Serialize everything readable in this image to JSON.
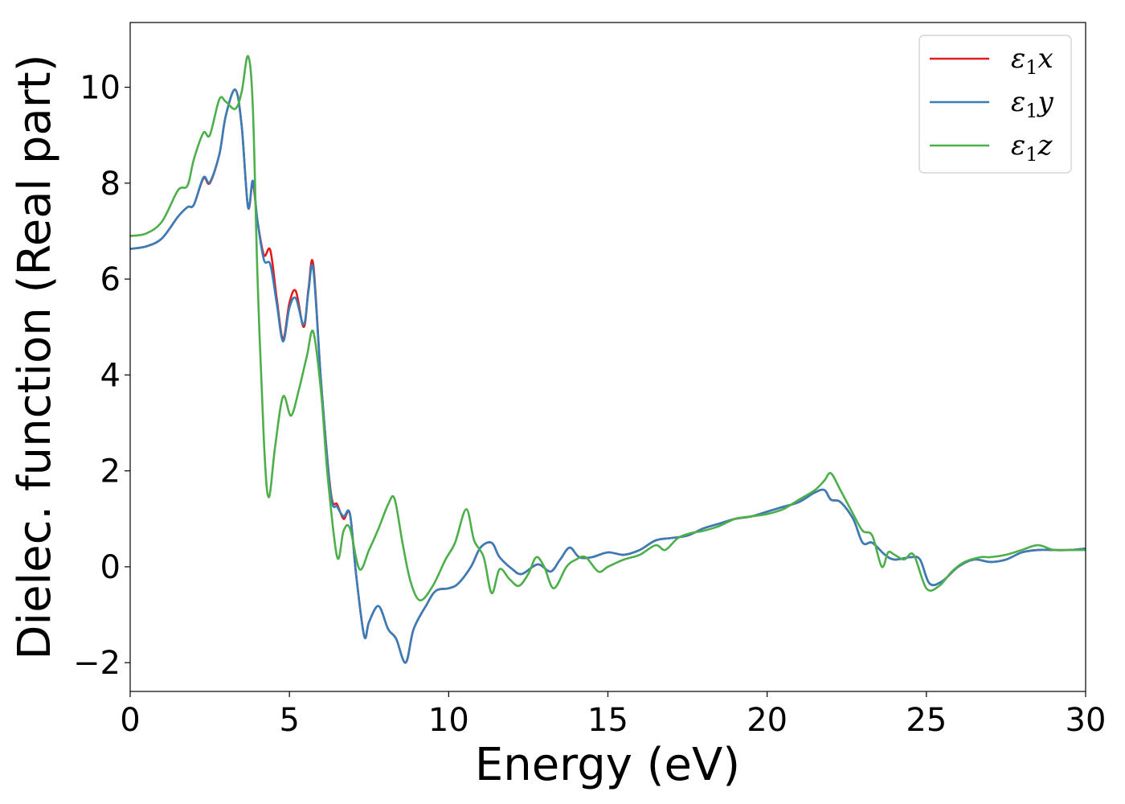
{
  "chart_data": {
    "type": "line",
    "title": "",
    "xlabel": "Energy (eV)",
    "ylabel": "Dielec. function (Real part)",
    "xlim": [
      0,
      30
    ],
    "ylim": [
      -2.6,
      11.35
    ],
    "xticks": [
      0,
      5,
      10,
      15,
      20,
      25,
      30
    ],
    "xtick_labels": [
      "0",
      "5",
      "10",
      "15",
      "20",
      "25",
      "30"
    ],
    "yticks": [
      -2,
      0,
      2,
      4,
      6,
      8,
      10
    ],
    "ytick_labels": [
      "−2",
      "0",
      "2",
      "4",
      "6",
      "8",
      "10"
    ],
    "grid": false,
    "legend_position": "top-right",
    "series": [
      {
        "name": "ε1x",
        "legend_symbol": "ε",
        "legend_sub": "1",
        "legend_var": "x",
        "color": "#e41a1c",
        "points": [
          [
            0,
            6.63
          ],
          [
            0.5,
            6.68
          ],
          [
            1.0,
            6.85
          ],
          [
            1.5,
            7.3
          ],
          [
            1.8,
            7.5
          ],
          [
            2.0,
            7.55
          ],
          [
            2.3,
            8.1
          ],
          [
            2.5,
            8.0
          ],
          [
            2.8,
            8.6
          ],
          [
            3.0,
            9.4
          ],
          [
            3.3,
            9.95
          ],
          [
            3.5,
            9.2
          ],
          [
            3.7,
            7.5
          ],
          [
            3.85,
            8.0
          ],
          [
            4.0,
            7.2
          ],
          [
            4.2,
            6.5
          ],
          [
            4.4,
            6.6
          ],
          [
            4.6,
            5.6
          ],
          [
            4.8,
            4.75
          ],
          [
            5.0,
            5.5
          ],
          [
            5.2,
            5.75
          ],
          [
            5.45,
            5.0
          ],
          [
            5.6,
            5.8
          ],
          [
            5.75,
            6.3
          ],
          [
            6.0,
            3.8
          ],
          [
            6.3,
            1.55
          ],
          [
            6.5,
            1.3
          ],
          [
            6.7,
            1.0
          ],
          [
            6.9,
            1.1
          ],
          [
            7.1,
            -0.2
          ],
          [
            7.35,
            -1.45
          ],
          [
            7.5,
            -1.15
          ],
          [
            7.8,
            -0.82
          ],
          [
            8.1,
            -1.3
          ],
          [
            8.35,
            -1.5
          ],
          [
            8.65,
            -2.0
          ],
          [
            8.9,
            -1.3
          ],
          [
            9.3,
            -0.8
          ],
          [
            9.6,
            -0.5
          ],
          [
            10.0,
            -0.45
          ],
          [
            10.3,
            -0.35
          ],
          [
            10.7,
            0.0
          ],
          [
            11.0,
            0.4
          ],
          [
            11.35,
            0.5
          ],
          [
            11.6,
            0.2
          ],
          [
            12.0,
            -0.05
          ],
          [
            12.3,
            -0.15
          ],
          [
            12.8,
            0.05
          ],
          [
            13.2,
            -0.1
          ],
          [
            13.5,
            0.15
          ],
          [
            13.8,
            0.4
          ],
          [
            14.1,
            0.2
          ],
          [
            14.5,
            0.2
          ],
          [
            15.0,
            0.3
          ],
          [
            15.5,
            0.25
          ],
          [
            16.0,
            0.35
          ],
          [
            16.5,
            0.55
          ],
          [
            17.0,
            0.6
          ],
          [
            17.5,
            0.65
          ],
          [
            18.0,
            0.8
          ],
          [
            18.5,
            0.9
          ],
          [
            19.0,
            1.0
          ],
          [
            19.5,
            1.05
          ],
          [
            20.0,
            1.15
          ],
          [
            20.5,
            1.25
          ],
          [
            21.0,
            1.35
          ],
          [
            21.5,
            1.55
          ],
          [
            21.8,
            1.6
          ],
          [
            22.0,
            1.4
          ],
          [
            22.3,
            1.35
          ],
          [
            22.7,
            1.0
          ],
          [
            23.0,
            0.5
          ],
          [
            23.3,
            0.5
          ],
          [
            23.7,
            0.25
          ],
          [
            24.0,
            0.15
          ],
          [
            24.5,
            0.2
          ],
          [
            24.8,
            0.15
          ],
          [
            25.1,
            -0.35
          ],
          [
            25.5,
            -0.3
          ],
          [
            26.0,
            0.0
          ],
          [
            26.5,
            0.15
          ],
          [
            27.0,
            0.1
          ],
          [
            27.5,
            0.15
          ],
          [
            28.0,
            0.3
          ],
          [
            28.5,
            0.35
          ],
          [
            29.0,
            0.35
          ],
          [
            29.5,
            0.35
          ],
          [
            30.0,
            0.38
          ]
        ]
      },
      {
        "name": "ε1y",
        "legend_symbol": "ε",
        "legend_sub": "1",
        "legend_var": "y",
        "color": "#377eb8",
        "points": [
          [
            0,
            6.63
          ],
          [
            0.5,
            6.68
          ],
          [
            1.0,
            6.85
          ],
          [
            1.5,
            7.3
          ],
          [
            1.8,
            7.5
          ],
          [
            2.0,
            7.55
          ],
          [
            2.3,
            8.12
          ],
          [
            2.5,
            8.02
          ],
          [
            2.8,
            8.6
          ],
          [
            3.0,
            9.4
          ],
          [
            3.3,
            9.95
          ],
          [
            3.5,
            9.2
          ],
          [
            3.7,
            7.5
          ],
          [
            3.85,
            8.05
          ],
          [
            4.0,
            7.2
          ],
          [
            4.2,
            6.4
          ],
          [
            4.4,
            6.3
          ],
          [
            4.6,
            5.5
          ],
          [
            4.8,
            4.7
          ],
          [
            5.0,
            5.4
          ],
          [
            5.2,
            5.6
          ],
          [
            5.45,
            5.05
          ],
          [
            5.6,
            5.75
          ],
          [
            5.75,
            6.2
          ],
          [
            6.0,
            3.8
          ],
          [
            6.3,
            1.5
          ],
          [
            6.5,
            1.25
          ],
          [
            6.7,
            1.05
          ],
          [
            6.9,
            1.1
          ],
          [
            7.1,
            -0.2
          ],
          [
            7.35,
            -1.45
          ],
          [
            7.5,
            -1.15
          ],
          [
            7.8,
            -0.82
          ],
          [
            8.1,
            -1.3
          ],
          [
            8.35,
            -1.5
          ],
          [
            8.65,
            -2.0
          ],
          [
            8.9,
            -1.3
          ],
          [
            9.3,
            -0.8
          ],
          [
            9.6,
            -0.5
          ],
          [
            10.0,
            -0.45
          ],
          [
            10.3,
            -0.35
          ],
          [
            10.7,
            0.0
          ],
          [
            11.0,
            0.4
          ],
          [
            11.35,
            0.5
          ],
          [
            11.6,
            0.2
          ],
          [
            12.0,
            -0.05
          ],
          [
            12.3,
            -0.15
          ],
          [
            12.8,
            0.05
          ],
          [
            13.2,
            -0.1
          ],
          [
            13.5,
            0.15
          ],
          [
            13.8,
            0.4
          ],
          [
            14.1,
            0.2
          ],
          [
            14.5,
            0.2
          ],
          [
            15.0,
            0.3
          ],
          [
            15.5,
            0.25
          ],
          [
            16.0,
            0.35
          ],
          [
            16.5,
            0.55
          ],
          [
            17.0,
            0.6
          ],
          [
            17.5,
            0.65
          ],
          [
            18.0,
            0.8
          ],
          [
            18.5,
            0.9
          ],
          [
            19.0,
            1.0
          ],
          [
            19.5,
            1.05
          ],
          [
            20.0,
            1.15
          ],
          [
            20.5,
            1.25
          ],
          [
            21.0,
            1.35
          ],
          [
            21.5,
            1.55
          ],
          [
            21.8,
            1.6
          ],
          [
            22.0,
            1.4
          ],
          [
            22.3,
            1.35
          ],
          [
            22.7,
            1.0
          ],
          [
            23.0,
            0.5
          ],
          [
            23.3,
            0.5
          ],
          [
            23.7,
            0.25
          ],
          [
            24.0,
            0.15
          ],
          [
            24.5,
            0.2
          ],
          [
            24.8,
            0.15
          ],
          [
            25.1,
            -0.35
          ],
          [
            25.5,
            -0.3
          ],
          [
            26.0,
            0.0
          ],
          [
            26.5,
            0.15
          ],
          [
            27.0,
            0.1
          ],
          [
            27.5,
            0.15
          ],
          [
            28.0,
            0.3
          ],
          [
            28.5,
            0.35
          ],
          [
            29.0,
            0.35
          ],
          [
            29.5,
            0.35
          ],
          [
            30.0,
            0.38
          ]
        ]
      },
      {
        "name": "ε1z",
        "legend_symbol": "ε",
        "legend_sub": "1",
        "legend_var": "z",
        "color": "#4daf4a",
        "points": [
          [
            0,
            6.9
          ],
          [
            0.5,
            6.95
          ],
          [
            1.0,
            7.2
          ],
          [
            1.5,
            7.85
          ],
          [
            1.8,
            7.95
          ],
          [
            2.0,
            8.5
          ],
          [
            2.3,
            9.05
          ],
          [
            2.5,
            9.0
          ],
          [
            2.8,
            9.75
          ],
          [
            3.0,
            9.7
          ],
          [
            3.3,
            9.55
          ],
          [
            3.5,
            9.9
          ],
          [
            3.7,
            10.65
          ],
          [
            3.85,
            9.6
          ],
          [
            4.0,
            6.0
          ],
          [
            4.2,
            2.6
          ],
          [
            4.35,
            1.45
          ],
          [
            4.55,
            2.5
          ],
          [
            4.8,
            3.55
          ],
          [
            5.05,
            3.15
          ],
          [
            5.3,
            3.7
          ],
          [
            5.55,
            4.4
          ],
          [
            5.75,
            4.9
          ],
          [
            6.0,
            3.6
          ],
          [
            6.2,
            1.9
          ],
          [
            6.5,
            0.2
          ],
          [
            6.7,
            0.75
          ],
          [
            6.9,
            0.8
          ],
          [
            7.2,
            -0.05
          ],
          [
            7.5,
            0.35
          ],
          [
            7.8,
            0.8
          ],
          [
            8.1,
            1.3
          ],
          [
            8.3,
            1.42
          ],
          [
            8.55,
            0.5
          ],
          [
            8.8,
            -0.3
          ],
          [
            9.1,
            -0.7
          ],
          [
            9.5,
            -0.4
          ],
          [
            9.9,
            0.15
          ],
          [
            10.2,
            0.5
          ],
          [
            10.55,
            1.2
          ],
          [
            10.8,
            0.55
          ],
          [
            11.1,
            0.2
          ],
          [
            11.35,
            -0.55
          ],
          [
            11.6,
            -0.05
          ],
          [
            11.9,
            -0.25
          ],
          [
            12.2,
            -0.4
          ],
          [
            12.5,
            -0.15
          ],
          [
            12.75,
            0.2
          ],
          [
            13.0,
            0.0
          ],
          [
            13.3,
            -0.45
          ],
          [
            13.7,
            0.0
          ],
          [
            14.0,
            0.15
          ],
          [
            14.3,
            0.2
          ],
          [
            14.7,
            -0.1
          ],
          [
            15.0,
            0.0
          ],
          [
            15.5,
            0.15
          ],
          [
            16.0,
            0.25
          ],
          [
            16.5,
            0.45
          ],
          [
            16.8,
            0.35
          ],
          [
            17.2,
            0.6
          ],
          [
            17.6,
            0.7
          ],
          [
            18.0,
            0.75
          ],
          [
            18.5,
            0.85
          ],
          [
            19.0,
            1.0
          ],
          [
            19.5,
            1.05
          ],
          [
            20.0,
            1.1
          ],
          [
            20.5,
            1.2
          ],
          [
            21.0,
            1.4
          ],
          [
            21.5,
            1.6
          ],
          [
            21.8,
            1.8
          ],
          [
            22.0,
            1.95
          ],
          [
            22.3,
            1.6
          ],
          [
            22.7,
            1.1
          ],
          [
            23.0,
            0.75
          ],
          [
            23.3,
            0.65
          ],
          [
            23.6,
            0.0
          ],
          [
            23.8,
            0.3
          ],
          [
            24.0,
            0.25
          ],
          [
            24.3,
            0.15
          ],
          [
            24.6,
            0.25
          ],
          [
            25.0,
            -0.45
          ],
          [
            25.4,
            -0.4
          ],
          [
            25.8,
            -0.1
          ],
          [
            26.2,
            0.1
          ],
          [
            26.7,
            0.2
          ],
          [
            27.0,
            0.2
          ],
          [
            27.5,
            0.25
          ],
          [
            28.0,
            0.35
          ],
          [
            28.5,
            0.45
          ],
          [
            29.0,
            0.35
          ],
          [
            29.5,
            0.35
          ],
          [
            30.0,
            0.35
          ]
        ]
      }
    ]
  }
}
